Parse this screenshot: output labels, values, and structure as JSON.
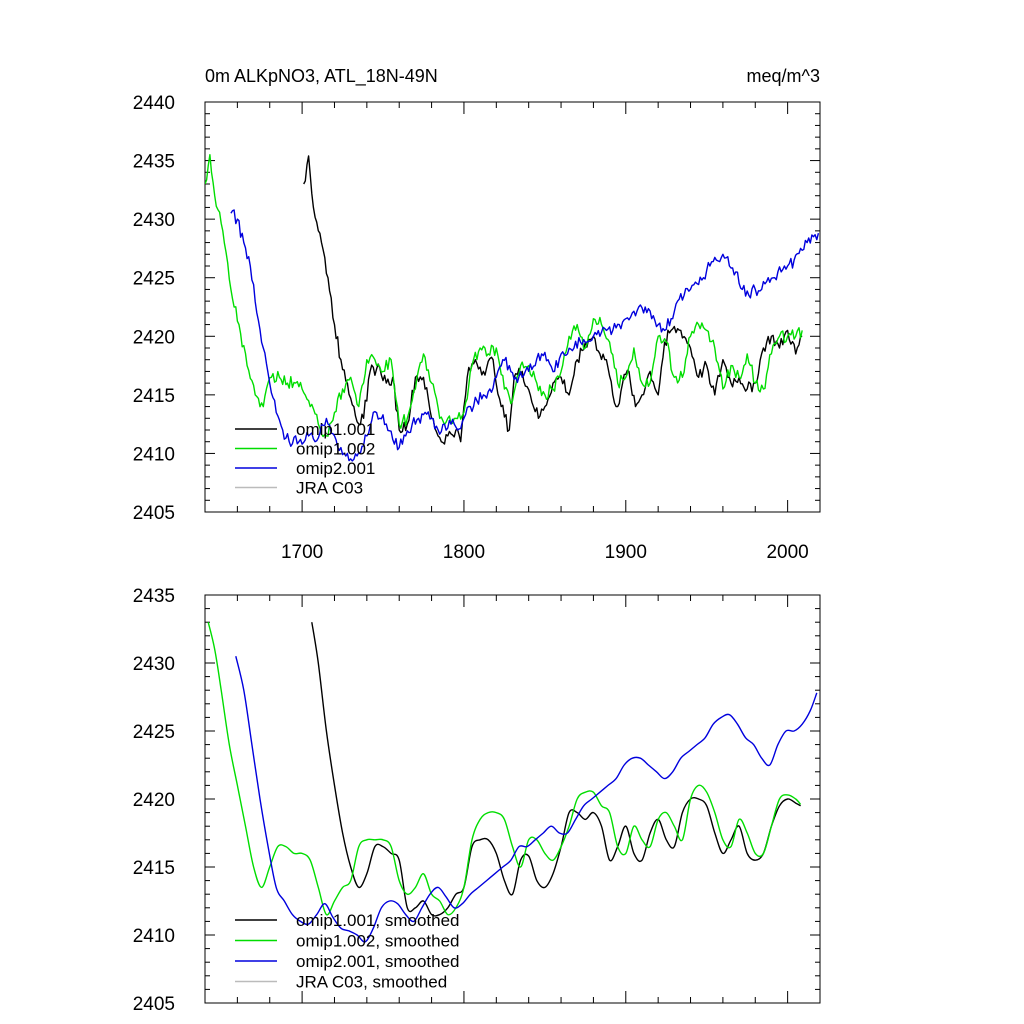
{
  "figure": {
    "title_left": "0m ALKpNO3, ATL_18N-49N",
    "title_right": "meq/m^3"
  },
  "chart_data": [
    {
      "type": "line",
      "id": "top",
      "xlim": [
        1640,
        2020
      ],
      "ylim": [
        2405,
        2440
      ],
      "xticks": [
        1700,
        1800,
        1900,
        2000
      ],
      "yticks": [
        2405,
        2410,
        2415,
        2420,
        2425,
        2430,
        2435,
        2440
      ],
      "show_x_tick_labels": true,
      "legend_position": "bottom-left",
      "series": [
        {
          "name": "omip1.001",
          "color": "#000000",
          "smooth": false,
          "x": [
            1701,
            1704,
            1707,
            1712,
            1716,
            1720,
            1724,
            1728,
            1732,
            1735,
            1738,
            1742,
            1748,
            1752,
            1756,
            1760,
            1765,
            1770,
            1775,
            1780,
            1786,
            1790,
            1795,
            1798,
            1802,
            1807,
            1812,
            1818,
            1823,
            1828,
            1831,
            1836,
            1841,
            1846,
            1850,
            1855,
            1860,
            1865,
            1870,
            1875,
            1880,
            1884,
            1888,
            1892,
            1895,
            1898,
            1902,
            1906,
            1910,
            1915,
            1920,
            1924,
            1928,
            1934,
            1940,
            1945,
            1950,
            1955,
            1960,
            1965,
            1970,
            1975,
            1980,
            1985,
            1990,
            1995,
            2000,
            2005,
            2009
          ],
          "y": [
            2433,
            2435.4,
            2431,
            2428,
            2425,
            2421,
            2418,
            2416,
            2414,
            2412.5,
            2413,
            2417,
            2417.3,
            2416,
            2416.5,
            2412,
            2412.5,
            2416.5,
            2416.5,
            2413,
            2411,
            2411.5,
            2412,
            2411,
            2416.5,
            2418,
            2417,
            2418,
            2414,
            2412,
            2416.5,
            2417,
            2415,
            2413,
            2414,
            2416,
            2416.5,
            2415,
            2418,
            2419.5,
            2420,
            2418.5,
            2418,
            2415,
            2414,
            2416,
            2417,
            2414,
            2415,
            2417,
            2415,
            2419.5,
            2420.5,
            2420.5,
            2419,
            2416.5,
            2417.5,
            2415,
            2418,
            2416,
            2416.5,
            2415.5,
            2416,
            2419,
            2420,
            2419,
            2420.5,
            2418.5,
            2420
          ]
        },
        {
          "name": "omip1.002",
          "color": "#00dd00",
          "smooth": false,
          "x": [
            1640,
            1643,
            1646,
            1651,
            1656,
            1661,
            1666,
            1671,
            1676,
            1681,
            1686,
            1691,
            1696,
            1700,
            1705,
            1710,
            1715,
            1720,
            1725,
            1730,
            1735,
            1740,
            1745,
            1750,
            1755,
            1760,
            1765,
            1770,
            1775,
            1780,
            1785,
            1790,
            1795,
            1800,
            1805,
            1810,
            1815,
            1820,
            1825,
            1830,
            1835,
            1840,
            1845,
            1850,
            1855,
            1860,
            1865,
            1870,
            1875,
            1880,
            1885,
            1890,
            1895,
            1900,
            1905,
            1910,
            1915,
            1920,
            1925,
            1930,
            1935,
            1940,
            1945,
            1950,
            1955,
            1960,
            1965,
            1970,
            1975,
            1980,
            1985,
            1990,
            1995,
            2000,
            2005,
            2009
          ],
          "y": [
            2433,
            2435.5,
            2432,
            2429,
            2424,
            2421,
            2417.5,
            2415,
            2414,
            2416.5,
            2416.5,
            2416,
            2416,
            2415.5,
            2414,
            2412.5,
            2411.5,
            2413.5,
            2415.5,
            2416.5,
            2414,
            2418,
            2418,
            2417,
            2418,
            2412.5,
            2413,
            2415.5,
            2418.5,
            2416,
            2413,
            2413,
            2413,
            2413.5,
            2417.5,
            2419,
            2418.5,
            2419,
            2415.5,
            2414.5,
            2417.5,
            2417.5,
            2416,
            2415,
            2415.5,
            2417,
            2420,
            2421,
            2419,
            2421.5,
            2421,
            2419.5,
            2416,
            2416.5,
            2419,
            2416,
            2416,
            2420,
            2419.5,
            2416.5,
            2416.5,
            2420,
            2421,
            2420.5,
            2419,
            2415.5,
            2417.5,
            2416.5,
            2418.5,
            2416,
            2415.5,
            2418.5,
            2420,
            2420,
            2420,
            2420.5
          ]
        },
        {
          "name": "omip2.001",
          "color": "#0000dd",
          "smooth": false,
          "x": [
            1656,
            1660,
            1664,
            1668,
            1672,
            1676,
            1680,
            1684,
            1688,
            1692,
            1696,
            1700,
            1704,
            1708,
            1712,
            1716,
            1720,
            1724,
            1728,
            1732,
            1736,
            1740,
            1744,
            1748,
            1752,
            1756,
            1760,
            1764,
            1768,
            1772,
            1776,
            1780,
            1784,
            1788,
            1792,
            1796,
            1800,
            1804,
            1808,
            1812,
            1816,
            1820,
            1824,
            1828,
            1832,
            1836,
            1840,
            1844,
            1848,
            1852,
            1856,
            1860,
            1864,
            1868,
            1872,
            1876,
            1880,
            1884,
            1888,
            1892,
            1896,
            1900,
            1904,
            1908,
            1912,
            1916,
            1920,
            1924,
            1928,
            1932,
            1936,
            1940,
            1944,
            1948,
            1952,
            1956,
            1960,
            1964,
            1968,
            1972,
            1976,
            1980,
            1984,
            1988,
            1992,
            1996,
            2000,
            2004,
            2008,
            2012,
            2016,
            2019
          ],
          "y": [
            2430.5,
            2430,
            2428,
            2426,
            2422,
            2419,
            2416,
            2413.5,
            2412,
            2411,
            2411.5,
            2410.8,
            2411.5,
            2411,
            2412.5,
            2412.5,
            2411.5,
            2410.5,
            2410,
            2409.5,
            2410,
            2411.5,
            2413.5,
            2413,
            2412.5,
            2411.2,
            2410.5,
            2411.5,
            2412.5,
            2413,
            2413.5,
            2413,
            2412,
            2412.5,
            2412.5,
            2412,
            2413,
            2414,
            2414.5,
            2415,
            2415.5,
            2416.5,
            2418,
            2417.5,
            2416.5,
            2416.5,
            2417,
            2417.5,
            2418.5,
            2418,
            2417,
            2418.5,
            2418.5,
            2419,
            2419.5,
            2419.5,
            2420,
            2420,
            2420.5,
            2420.5,
            2421,
            2421.5,
            2422,
            2422.5,
            2422.5,
            2421.5,
            2421,
            2420.5,
            2421.5,
            2423,
            2423.5,
            2424,
            2424.5,
            2425,
            2426,
            2426.5,
            2427,
            2426,
            2425.5,
            2424,
            2423.5,
            2424,
            2424,
            2425,
            2425,
            2425.5,
            2426,
            2426.5,
            2427.5,
            2428,
            2428.5,
            2428.8
          ]
        },
        {
          "name": "JRA C03",
          "color": "#bbbbbb",
          "smooth": false,
          "x": [],
          "y": []
        }
      ]
    },
    {
      "type": "line",
      "id": "bottom",
      "xlim": [
        1640,
        2020
      ],
      "ylim": [
        2405,
        2435
      ],
      "xticks": [
        1700,
        1800,
        1900,
        2000
      ],
      "yticks": [
        2405,
        2410,
        2415,
        2420,
        2425,
        2430,
        2435
      ],
      "show_x_tick_labels": false,
      "legend_position": "bottom-left",
      "series": [
        {
          "name": "omip1.001, smoothed",
          "color": "#000000",
          "smooth": true,
          "x": [
            1706,
            1710,
            1715,
            1720,
            1725,
            1730,
            1735,
            1740,
            1745,
            1750,
            1755,
            1760,
            1765,
            1770,
            1775,
            1780,
            1785,
            1790,
            1795,
            1800,
            1805,
            1810,
            1815,
            1820,
            1825,
            1830,
            1835,
            1840,
            1845,
            1850,
            1855,
            1860,
            1865,
            1870,
            1875,
            1880,
            1885,
            1890,
            1895,
            1900,
            1905,
            1910,
            1915,
            1920,
            1925,
            1930,
            1935,
            1940,
            1945,
            1950,
            1955,
            1960,
            1965,
            1970,
            1975,
            1980,
            1985,
            1990,
            1995,
            2000,
            2005,
            2008
          ],
          "y": [
            2433,
            2430,
            2425,
            2421,
            2417.5,
            2415,
            2413.5,
            2414.5,
            2416.5,
            2416.5,
            2416,
            2415.5,
            2412,
            2412,
            2412.5,
            2411.5,
            2411.5,
            2412,
            2413,
            2413.5,
            2416.5,
            2417,
            2417,
            2416,
            2414,
            2413,
            2415.5,
            2415.8,
            2414,
            2413.5,
            2414.5,
            2416.5,
            2419,
            2419,
            2418.5,
            2419,
            2418,
            2415.5,
            2416.5,
            2418,
            2416,
            2415.5,
            2417.5,
            2418.5,
            2417,
            2416.5,
            2419,
            2420,
            2420,
            2419.5,
            2417.5,
            2416,
            2417,
            2418,
            2416,
            2415.5,
            2416,
            2418,
            2419.5,
            2420,
            2419.7,
            2419.5
          ]
        },
        {
          "name": "omip1.002, smoothed",
          "color": "#00dd00",
          "smooth": true,
          "x": [
            1642,
            1646,
            1650,
            1655,
            1660,
            1665,
            1670,
            1675,
            1680,
            1685,
            1690,
            1695,
            1700,
            1705,
            1710,
            1715,
            1720,
            1725,
            1730,
            1735,
            1740,
            1745,
            1750,
            1755,
            1760,
            1765,
            1770,
            1775,
            1780,
            1785,
            1790,
            1795,
            1800,
            1805,
            1810,
            1815,
            1820,
            1825,
            1830,
            1835,
            1840,
            1845,
            1850,
            1855,
            1860,
            1865,
            1870,
            1875,
            1880,
            1885,
            1890,
            1895,
            1900,
            1905,
            1910,
            1915,
            1920,
            1925,
            1930,
            1935,
            1940,
            1945,
            1950,
            1955,
            1960,
            1965,
            1970,
            1975,
            1980,
            1985,
            1990,
            1995,
            2000,
            2005,
            2008
          ],
          "y": [
            2433,
            2431,
            2428,
            2424,
            2421,
            2418,
            2415,
            2413.5,
            2415,
            2416.5,
            2416.5,
            2416,
            2416,
            2415.5,
            2413.5,
            2411.5,
            2412.5,
            2413.5,
            2414,
            2416.5,
            2417,
            2417,
            2417,
            2416.5,
            2414,
            2413,
            2413.5,
            2414.5,
            2413,
            2412.5,
            2411.5,
            2412,
            2413.5,
            2417,
            2418.5,
            2419,
            2419,
            2418.5,
            2416.5,
            2415,
            2417,
            2417,
            2416,
            2415.5,
            2416.5,
            2418,
            2420,
            2420.5,
            2420.5,
            2419.5,
            2419,
            2416.5,
            2416,
            2418,
            2417,
            2416.5,
            2418.5,
            2419,
            2418,
            2417,
            2420,
            2421,
            2420.5,
            2419,
            2417,
            2416.5,
            2418.5,
            2417.5,
            2416,
            2416,
            2418,
            2420,
            2420.3,
            2420,
            2419.6
          ]
        },
        {
          "name": "omip2.001, smoothed",
          "color": "#0000dd",
          "smooth": true,
          "x": [
            1659,
            1664,
            1669,
            1674,
            1679,
            1684,
            1689,
            1694,
            1699,
            1704,
            1709,
            1714,
            1719,
            1724,
            1729,
            1734,
            1739,
            1744,
            1749,
            1754,
            1759,
            1764,
            1769,
            1774,
            1779,
            1784,
            1789,
            1794,
            1799,
            1804,
            1809,
            1814,
            1819,
            1824,
            1829,
            1834,
            1839,
            1844,
            1849,
            1854,
            1859,
            1864,
            1869,
            1874,
            1879,
            1884,
            1889,
            1894,
            1899,
            1904,
            1909,
            1914,
            1919,
            1924,
            1929,
            1934,
            1939,
            1944,
            1949,
            1954,
            1959,
            1964,
            1969,
            1974,
            1979,
            1984,
            1989,
            1994,
            1999,
            2004,
            2009,
            2014,
            2018
          ],
          "y": [
            2430.5,
            2428,
            2424,
            2420,
            2416.5,
            2413.5,
            2412.5,
            2411.5,
            2411,
            2410.8,
            2411.5,
            2412.3,
            2411.3,
            2410.5,
            2410.3,
            2410,
            2409.5,
            2410.5,
            2412,
            2412.5,
            2412.3,
            2411.5,
            2411,
            2412,
            2413,
            2413.5,
            2412.8,
            2412,
            2412.3,
            2413,
            2413.5,
            2414,
            2414.5,
            2415,
            2415.5,
            2416.5,
            2416.5,
            2417,
            2417.5,
            2418,
            2417.5,
            2417.5,
            2418.5,
            2419.5,
            2420,
            2420.5,
            2421,
            2421.5,
            2422.5,
            2423,
            2423,
            2422.5,
            2422,
            2421.5,
            2422,
            2423,
            2423.5,
            2424,
            2424.5,
            2425.5,
            2426,
            2426.2,
            2425.5,
            2424.5,
            2424,
            2423,
            2422.5,
            2424,
            2425,
            2425,
            2425.5,
            2426.5,
            2427.8
          ]
        },
        {
          "name": "JRA C03, smoothed",
          "color": "#bbbbbb",
          "smooth": true,
          "x": [],
          "y": []
        }
      ]
    }
  ]
}
